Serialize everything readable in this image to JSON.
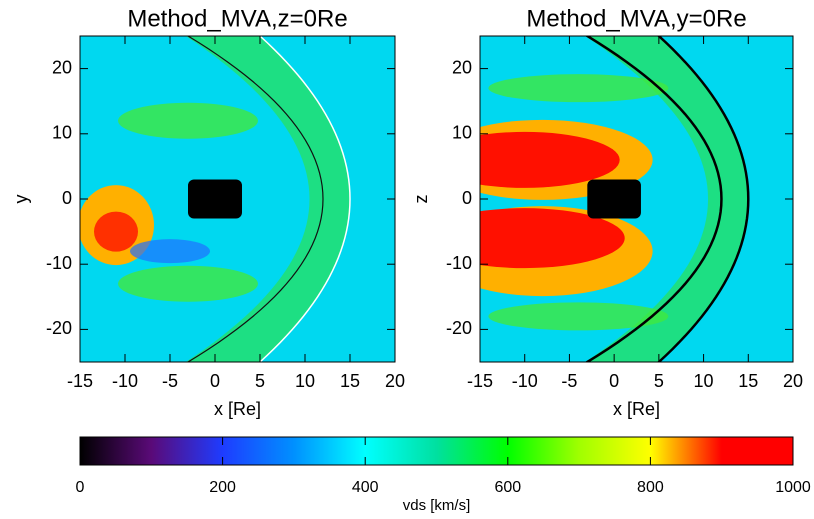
{
  "chart_data": [
    {
      "type": "heatmap",
      "title": "Method_MVA,z=0Re",
      "x_label": "x [Re]",
      "y_label": "y",
      "xlim": [
        -15,
        20
      ],
      "ylim": [
        -25,
        25
      ],
      "xticks": [
        -15,
        -10,
        -5,
        0,
        5,
        10,
        15,
        20
      ],
      "yticks": [
        -20,
        -10,
        0,
        10,
        20
      ]
    },
    {
      "type": "heatmap",
      "title": "Method_MVA,y=0Re",
      "x_label": "x [Re]",
      "y_label": "z",
      "xlim": [
        -15,
        20
      ],
      "ylim": [
        -25,
        25
      ],
      "xticks": [
        -15,
        -10,
        -5,
        0,
        5,
        10,
        15,
        20
      ],
      "yticks": [
        -20,
        -10,
        0,
        10,
        20
      ]
    }
  ],
  "colorbar": {
    "label": "vds [km/s]",
    "lim": [
      0,
      1000
    ],
    "ticks": [
      0,
      200,
      400,
      600,
      800,
      1000
    ]
  }
}
